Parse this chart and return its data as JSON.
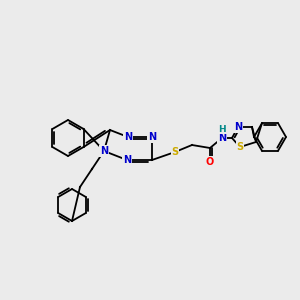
{
  "background_color": "#ebebeb",
  "atom_colors": {
    "C": "#000000",
    "N": "#0000cc",
    "S": "#ccaa00",
    "O": "#ff0000",
    "H": "#008888"
  },
  "bond_color": "#000000",
  "figsize": [
    3.0,
    3.0
  ],
  "dpi": 100
}
